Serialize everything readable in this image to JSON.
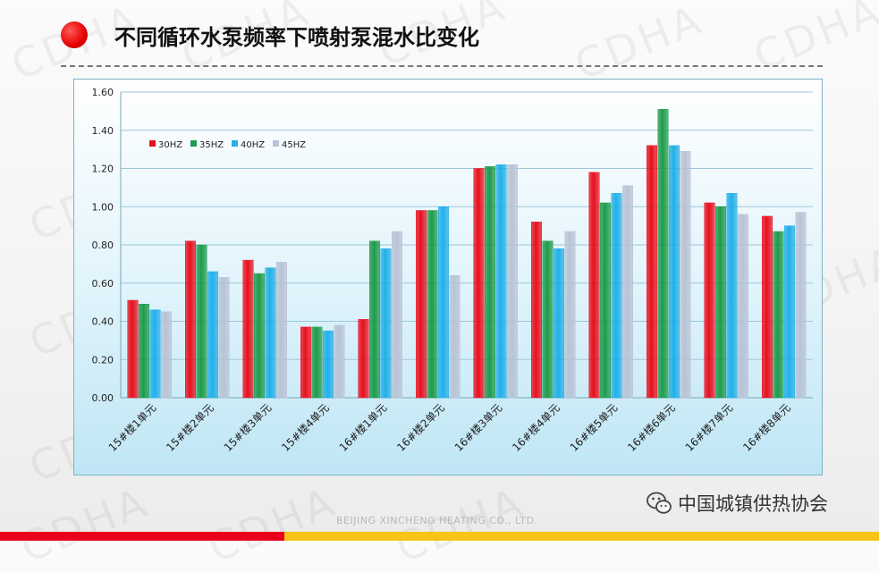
{
  "header": {
    "title": "不同循环水泵频率下喷射泵混水比变化"
  },
  "watermark": {
    "text": "CDHA"
  },
  "footer": {
    "company": "BEIJING XINCHENG HEATING CO., LTD.",
    "org": "中国城镇供热协会"
  },
  "colors": {
    "accent_red": "#e8001c",
    "accent_yellow": "#f7c417"
  },
  "chart_data": {
    "type": "bar",
    "categories": [
      "15#楼1单元",
      "15#楼2单元",
      "15#楼3单元",
      "15#楼4单元",
      "16#楼1单元",
      "16#楼2单元",
      "16#楼3单元",
      "16#楼4单元",
      "16#楼5单元",
      "16#楼6单元",
      "16#楼7单元",
      "16#楼8单元"
    ],
    "series": [
      {
        "name": "30HZ",
        "color": "#e8101e",
        "values": [
          0.51,
          0.82,
          0.72,
          0.37,
          0.41,
          0.98,
          1.2,
          0.92,
          1.18,
          1.32,
          1.02,
          0.95
        ]
      },
      {
        "name": "35HZ",
        "color": "#1e9b4c",
        "values": [
          0.49,
          0.8,
          0.65,
          0.37,
          0.82,
          0.98,
          1.21,
          0.82,
          1.02,
          1.51,
          1.0,
          0.87
        ]
      },
      {
        "name": "40HZ",
        "color": "#22b0e8",
        "values": [
          0.46,
          0.66,
          0.68,
          0.35,
          0.78,
          1.0,
          1.22,
          0.78,
          1.07,
          1.32,
          1.07,
          0.9
        ]
      },
      {
        "name": "45HZ",
        "color": "#b9c3d6",
        "values": [
          0.45,
          0.63,
          0.71,
          0.38,
          0.87,
          0.64,
          1.22,
          0.87,
          1.11,
          1.29,
          0.96,
          0.97
        ]
      }
    ],
    "y_ticks": [
      "0.00",
      "0.20",
      "0.40",
      "0.60",
      "0.80",
      "1.00",
      "1.20",
      "1.40",
      "1.60"
    ],
    "ylim": [
      0,
      1.6
    ],
    "grid": true,
    "legend_position": "top-left"
  }
}
